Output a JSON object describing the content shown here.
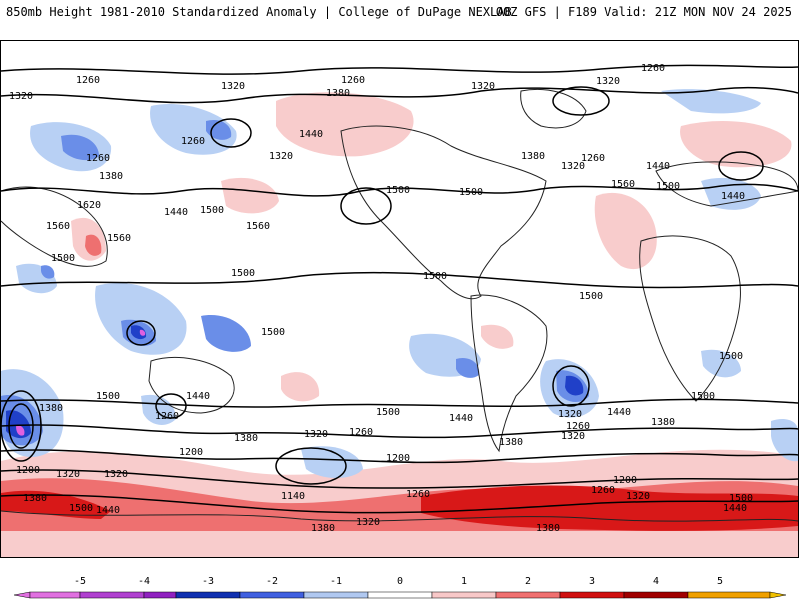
{
  "header": {
    "title_left": "850mb Height 1981-2010 Standardized Anomaly | College of DuPage NEXLAB",
    "title_right": "00Z GFS | F189 Valid: 21Z MON NOV 24 2025"
  },
  "contour_labels": [
    "1260",
    "1320",
    "1380",
    "1440",
    "1500",
    "1560",
    "1620",
    "1200",
    "1140"
  ],
  "colorbar": {
    "ticks": [
      "-5",
      "-4",
      "-3",
      "-2",
      "-1",
      "0",
      "1",
      "2",
      "3",
      "4",
      "5"
    ],
    "colors": [
      "#e070e0",
      "#9020c0",
      "#1030b0",
      "#4060e0",
      "#b0c8f0",
      "#ffffff",
      "#f8c8c8",
      "#f07070",
      "#d01010",
      "#a00000",
      "#f0a000"
    ]
  },
  "palette": {
    "neg1": "#b8d0f4",
    "neg2": "#6a8ee8",
    "neg3": "#2040c8",
    "neg5": "#e060e0",
    "pos1": "#f8cccc",
    "pos2": "#ee7070",
    "pos3": "#d81818",
    "land": "#222222",
    "contour": "#000000"
  }
}
